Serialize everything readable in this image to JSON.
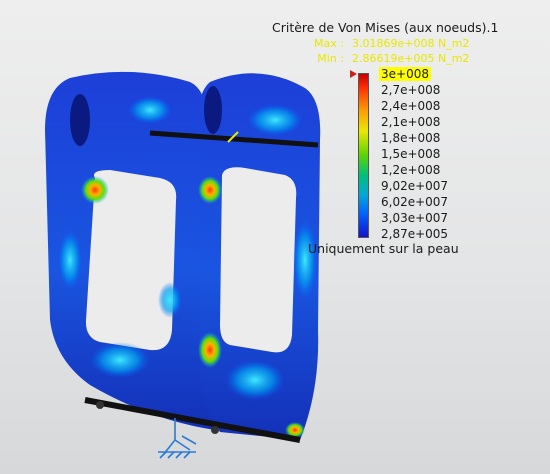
{
  "legend": {
    "title": "Critère de Von Mises (aux noeuds).1",
    "max_label": "Max :",
    "max_value": "3.01869e+008 N_m2",
    "min_label": "Min :",
    "min_value": "2.86619e+005 N_m2",
    "ticks": [
      "3e+008",
      "2,7e+008",
      "2,4e+008",
      "2,1e+008",
      "1,8e+008",
      "1,5e+008",
      "1,2e+008",
      "9,02e+007",
      "6,02e+007",
      "3,03e+007",
      "2,87e+005"
    ],
    "note": "Uniquement sur la peau"
  },
  "colors": {
    "low": "#1414c8",
    "mid": "#00b0c8",
    "high": "#e8e800",
    "peak": "#c40000"
  }
}
